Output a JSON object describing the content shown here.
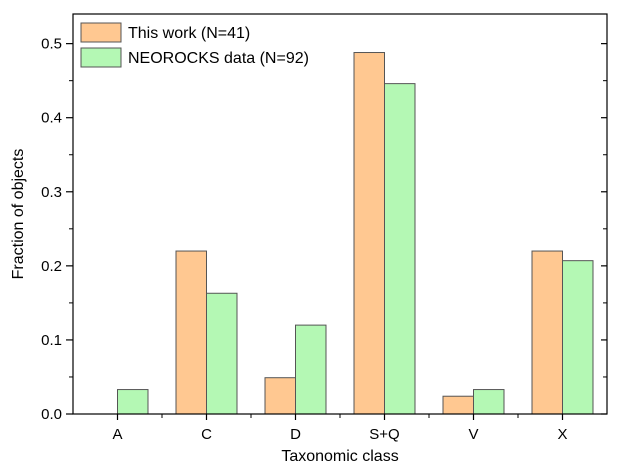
{
  "chart_data": {
    "type": "bar",
    "title": "",
    "xlabel": "Taxonomic class",
    "ylabel": "Fraction of objects",
    "categories": [
      "A",
      "C",
      "D",
      "S+Q",
      "V",
      "X"
    ],
    "ylim": [
      0,
      0.54
    ],
    "yticks": [
      "0.0",
      "0.1",
      "0.2",
      "0.3",
      "0.4",
      "0.5"
    ],
    "grid": false,
    "legend_position": "top-left",
    "series": [
      {
        "name": "This work (N=41)",
        "values": [
          0.0,
          0.22,
          0.049,
          0.488,
          0.024,
          0.22
        ],
        "color": "#FFC891"
      },
      {
        "name": "NEOROCKS data (N=92)",
        "values": [
          0.033,
          0.163,
          0.12,
          0.446,
          0.033,
          0.207
        ],
        "color": "#B4F8B4"
      }
    ],
    "bar_edge_color": "#555555"
  }
}
